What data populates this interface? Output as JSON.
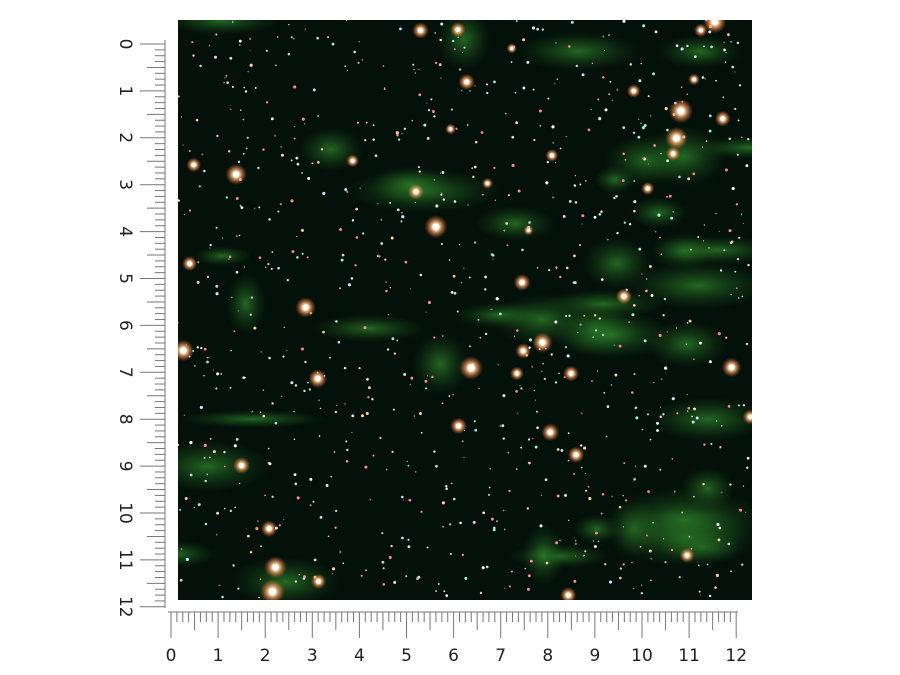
{
  "vertical_ruler": {
    "labels": [
      0,
      1,
      2,
      3,
      4,
      5,
      6,
      7,
      8,
      9,
      10,
      11,
      12
    ]
  },
  "horizontal_ruler": {
    "labels": [
      0,
      1,
      2,
      3,
      4,
      5,
      6,
      7,
      8,
      9,
      10,
      11,
      12
    ]
  }
}
